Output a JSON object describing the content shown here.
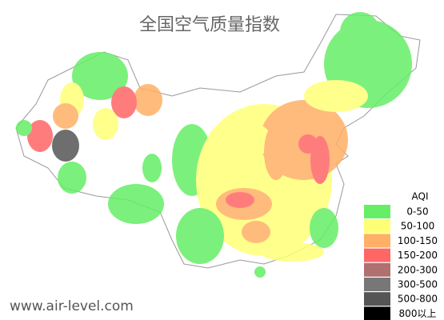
{
  "title": "全国空气质量指数",
  "legend": {
    "title": "AQI",
    "items": [
      {
        "label": "0-50",
        "color": "#66ee66"
      },
      {
        "label": "50-100",
        "color": "#ffff77"
      },
      {
        "label": "100-150",
        "color": "#ffb066"
      },
      {
        "label": "150-200",
        "color": "#ff6666"
      },
      {
        "label": "200-300",
        "color": "#b07070"
      },
      {
        "label": "300-500",
        "color": "#777777"
      },
      {
        "label": "500-800",
        "color": "#555555"
      },
      {
        "label": "800以上",
        "color": "#000000"
      }
    ]
  },
  "watermark": "www.air-level.com"
}
